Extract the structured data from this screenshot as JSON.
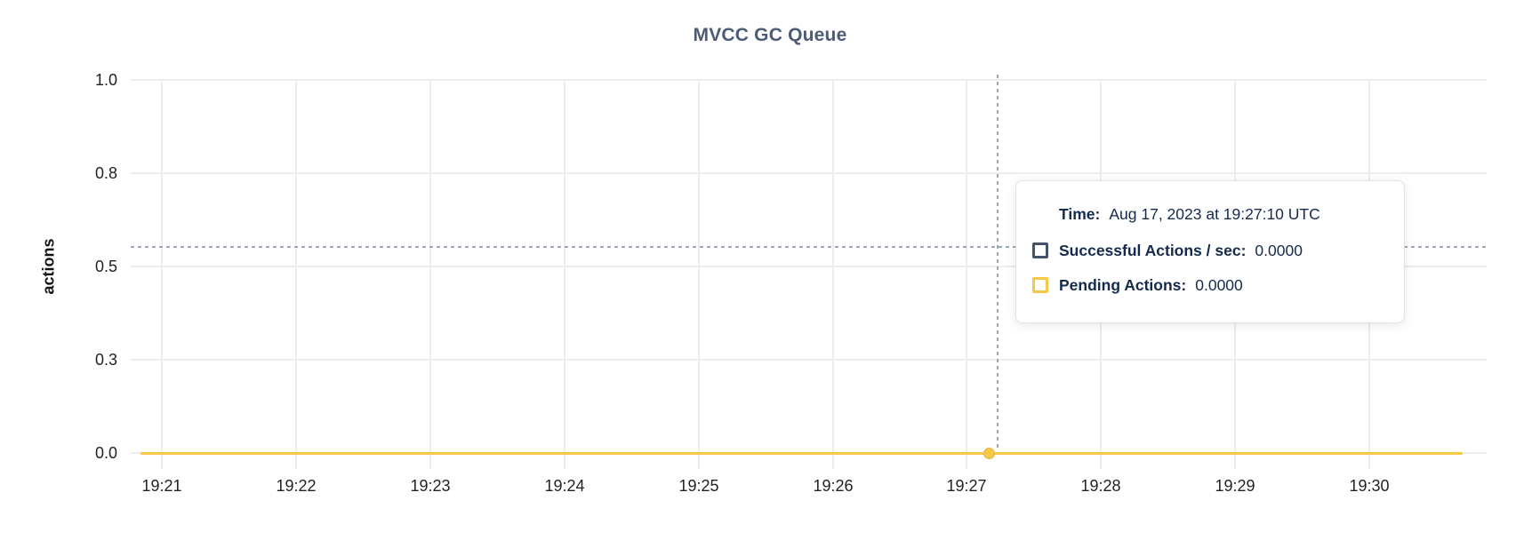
{
  "title": "MVCC GC Queue",
  "colors": {
    "title_text": "#4d5b76",
    "axis_text": "#1f2125",
    "grid": "#ededed",
    "crosshair": "#9aa6b6",
    "tooltip_text": "#152a4d",
    "series_successful": "#44526b",
    "series_pending": "#f5c845"
  },
  "chart_data": {
    "type": "line",
    "title": "MVCC GC Queue",
    "xlabel": "",
    "ylabel": "actions",
    "x_ticks": [
      "19:21",
      "19:22",
      "19:23",
      "19:24",
      "19:25",
      "19:26",
      "19:27",
      "19:28",
      "19:29",
      "19:30"
    ],
    "y_ticks": [
      "1.0",
      "0.8",
      "0.5",
      "0.3",
      "0.0"
    ],
    "ylim": [
      0,
      1.0
    ],
    "grid": true,
    "legend_position": "tooltip-only",
    "series": [
      {
        "name": "Successful Actions / sec",
        "color": "#44526b",
        "values": [
          0,
          0,
          0,
          0,
          0,
          0,
          0,
          0,
          0,
          0
        ]
      },
      {
        "name": "Pending Actions",
        "color": "#f5c845",
        "values": [
          0,
          0,
          0,
          0,
          0,
          0,
          0,
          0,
          0,
          0
        ]
      }
    ],
    "hover": {
      "time": "19:27:10",
      "seconds_from_first_tick": 370,
      "point_value": 0,
      "crosshair_y_value": 0.552
    }
  },
  "tooltip": {
    "time_label": "Time:",
    "time_value": "Aug 17, 2023 at 19:27:10 UTC",
    "rows": [
      {
        "label": "Successful Actions / sec:",
        "value": "0.0000",
        "swatch_color": "#44526b"
      },
      {
        "label": "Pending Actions:",
        "value": "0.0000",
        "swatch_color": "#f5c845"
      }
    ]
  }
}
